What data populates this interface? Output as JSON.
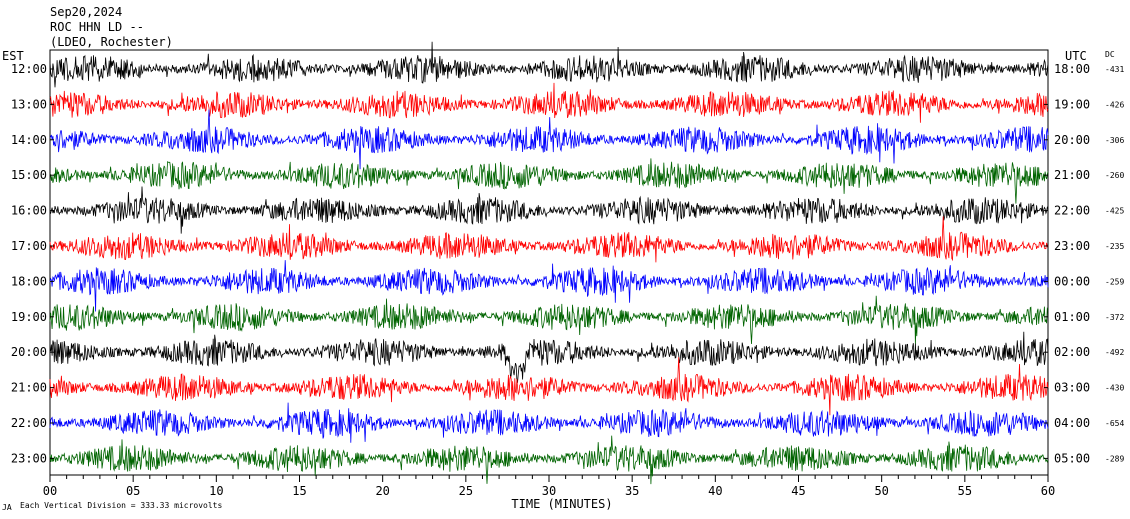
{
  "header": {
    "date": "Sep20,2024",
    "station": "ROC HHN LD --",
    "network": "(LDEO, Rochester)"
  },
  "footer": {
    "logo": "JA",
    "scale_note": "Each Vertical Division =  333.33 microvolts"
  },
  "chart_data": {
    "type": "helicorder",
    "left_axis_label": "EST",
    "right_axis_label": "UTC",
    "dc_label": "DC",
    "xlabel": "TIME (MINUTES)",
    "x_ticks": [
      "00",
      "05",
      "10",
      "15",
      "20",
      "25",
      "30",
      "35",
      "40",
      "45",
      "50",
      "55",
      "60"
    ],
    "xlim": [
      0,
      60
    ],
    "trace_colors": [
      "#000000",
      "#ff0000",
      "#0000ff",
      "#006400"
    ],
    "traces": [
      {
        "est": "12:00",
        "utc": "18:00",
        "dc": "-431",
        "color": "#000000"
      },
      {
        "est": "13:00",
        "utc": "19:00",
        "dc": "-426",
        "color": "#ff0000"
      },
      {
        "est": "14:00",
        "utc": "20:00",
        "dc": "-306",
        "color": "#0000ff"
      },
      {
        "est": "15:00",
        "utc": "21:00",
        "dc": "-260",
        "color": "#006400"
      },
      {
        "est": "16:00",
        "utc": "22:00",
        "dc": "-425",
        "color": "#000000"
      },
      {
        "est": "17:00",
        "utc": "23:00",
        "dc": "-235",
        "color": "#ff0000"
      },
      {
        "est": "18:00",
        "utc": "00:00",
        "dc": "-259",
        "color": "#0000ff"
      },
      {
        "est": "19:00",
        "utc": "01:00",
        "dc": "-372",
        "color": "#006400"
      },
      {
        "est": "20:00",
        "utc": "02:00",
        "dc": "-492",
        "color": "#000000"
      },
      {
        "est": "21:00",
        "utc": "03:00",
        "dc": "-430",
        "color": "#ff0000"
      },
      {
        "est": "22:00",
        "utc": "04:00",
        "dc": "-654",
        "color": "#0000ff"
      },
      {
        "est": "23:00",
        "utc": "05:00",
        "dc": "-289",
        "color": "#006400"
      }
    ]
  }
}
